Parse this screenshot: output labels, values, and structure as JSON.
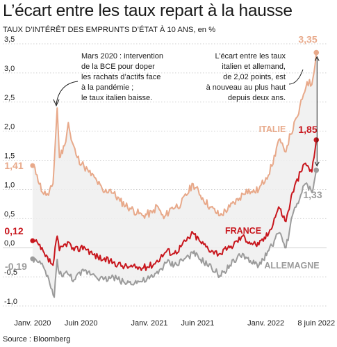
{
  "header": {
    "title": "L’écart entre les taux repart à la hausse",
    "subtitle": "TAUX D’INTÉRÊT DES EMPRUNTS D’ÉTAT À 10 ANS, en %"
  },
  "source": "Source : Bloomberg",
  "colors": {
    "italie": "#e8a98a",
    "france": "#c8161d",
    "allemagne": "#9b9b9b",
    "band": "#efefef",
    "grid": "#cfcfcf"
  },
  "chart_data": {
    "type": "line",
    "x_tick_labels": [
      "Janv. 2020",
      "Juin 2020",
      "Janv. 2021",
      "Juin 2021",
      "Janv. 2022",
      "8 juin 2022"
    ],
    "x_tick_dates": [
      "2020-01-01",
      "2020-06-01",
      "2021-01-01",
      "2021-06-01",
      "2022-01-01",
      "2022-06-08"
    ],
    "y_tick_labels": [
      "3,5",
      "3,0",
      "2,5",
      "2,0",
      "1,5",
      "1,0",
      "0,5",
      "0,0",
      "-0,5",
      "-1,0"
    ],
    "ylim": [
      -1.0,
      3.5
    ],
    "grid": true,
    "series": [
      {
        "name": "ITALIE",
        "start_label": "1,41",
        "end_label": "3,35",
        "points": [
          [
            "2020-01-01",
            1.41
          ],
          [
            "2020-01-15",
            1.25
          ],
          [
            "2020-02-01",
            0.95
          ],
          [
            "2020-02-20",
            0.9
          ],
          [
            "2020-03-05",
            1.1
          ],
          [
            "2020-03-18",
            2.4
          ],
          [
            "2020-03-25",
            1.55
          ],
          [
            "2020-04-10",
            1.75
          ],
          [
            "2020-04-22",
            2.15
          ],
          [
            "2020-05-01",
            1.85
          ],
          [
            "2020-05-20",
            1.55
          ],
          [
            "2020-06-10",
            1.4
          ],
          [
            "2020-06-25",
            1.3
          ],
          [
            "2020-07-20",
            1.15
          ],
          [
            "2020-08-10",
            0.95
          ],
          [
            "2020-09-01",
            1.0
          ],
          [
            "2020-10-01",
            0.8
          ],
          [
            "2020-11-01",
            0.68
          ],
          [
            "2020-12-10",
            0.55
          ],
          [
            "2021-01-10",
            0.6
          ],
          [
            "2021-01-25",
            0.72
          ],
          [
            "2021-02-15",
            0.5
          ],
          [
            "2021-03-10",
            0.68
          ],
          [
            "2021-04-10",
            0.75
          ],
          [
            "2021-05-18",
            1.1
          ],
          [
            "2021-06-10",
            0.9
          ],
          [
            "2021-07-10",
            0.7
          ],
          [
            "2021-08-10",
            0.55
          ],
          [
            "2021-09-10",
            0.7
          ],
          [
            "2021-10-10",
            0.85
          ],
          [
            "2021-11-01",
            1.0
          ],
          [
            "2021-11-20",
            0.95
          ],
          [
            "2021-12-10",
            1.0
          ],
          [
            "2022-01-01",
            1.2
          ],
          [
            "2022-01-20",
            1.4
          ],
          [
            "2022-02-10",
            1.85
          ],
          [
            "2022-03-01",
            1.65
          ],
          [
            "2022-03-20",
            1.95
          ],
          [
            "2022-04-10",
            2.25
          ],
          [
            "2022-04-25",
            2.55
          ],
          [
            "2022-05-10",
            2.85
          ],
          [
            "2022-05-25",
            2.8
          ],
          [
            "2022-06-08",
            3.35
          ]
        ]
      },
      {
        "name": "FRANCE",
        "start_label": "0,12",
        "end_label": "1,85",
        "points": [
          [
            "2020-01-01",
            0.12
          ],
          [
            "2020-01-20",
            0.05
          ],
          [
            "2020-02-10",
            -0.15
          ],
          [
            "2020-03-05",
            -0.3
          ],
          [
            "2020-03-18",
            0.2
          ],
          [
            "2020-03-25",
            -0.05
          ],
          [
            "2020-04-20",
            0.1
          ],
          [
            "2020-05-10",
            -0.05
          ],
          [
            "2020-06-10",
            0.02
          ],
          [
            "2020-07-10",
            -0.12
          ],
          [
            "2020-08-10",
            -0.2
          ],
          [
            "2020-09-10",
            -0.25
          ],
          [
            "2020-10-15",
            -0.32
          ],
          [
            "2020-12-10",
            -0.35
          ],
          [
            "2021-01-15",
            -0.28
          ],
          [
            "2021-02-25",
            -0.05
          ],
          [
            "2021-03-20",
            -0.1
          ],
          [
            "2021-05-18",
            0.25
          ],
          [
            "2021-06-10",
            0.1
          ],
          [
            "2021-07-15",
            -0.05
          ],
          [
            "2021-08-10",
            -0.1
          ],
          [
            "2021-09-10",
            0.0
          ],
          [
            "2021-10-20",
            0.2
          ],
          [
            "2021-11-10",
            0.1
          ],
          [
            "2021-12-10",
            0.05
          ],
          [
            "2022-01-10",
            0.25
          ],
          [
            "2022-02-10",
            0.7
          ],
          [
            "2022-03-05",
            0.45
          ],
          [
            "2022-03-25",
            0.95
          ],
          [
            "2022-04-20",
            1.3
          ],
          [
            "2022-05-05",
            1.45
          ],
          [
            "2022-05-25",
            1.3
          ],
          [
            "2022-06-08",
            1.85
          ]
        ]
      },
      {
        "name": "ALLEMAGNE",
        "start_label": "-0,19",
        "end_label": "1,33",
        "points": [
          [
            "2020-01-01",
            -0.19
          ],
          [
            "2020-01-20",
            -0.25
          ],
          [
            "2020-02-10",
            -0.4
          ],
          [
            "2020-03-09",
            -0.85
          ],
          [
            "2020-03-18",
            -0.2
          ],
          [
            "2020-03-25",
            -0.45
          ],
          [
            "2020-04-20",
            -0.45
          ],
          [
            "2020-05-10",
            -0.55
          ],
          [
            "2020-06-10",
            -0.4
          ],
          [
            "2020-07-10",
            -0.45
          ],
          [
            "2020-08-10",
            -0.55
          ],
          [
            "2020-09-10",
            -0.5
          ],
          [
            "2020-10-15",
            -0.6
          ],
          [
            "2020-12-10",
            -0.58
          ],
          [
            "2021-01-15",
            -0.5
          ],
          [
            "2021-02-25",
            -0.25
          ],
          [
            "2021-03-20",
            -0.3
          ],
          [
            "2021-05-18",
            -0.1
          ],
          [
            "2021-06-10",
            -0.2
          ],
          [
            "2021-07-15",
            -0.35
          ],
          [
            "2021-08-10",
            -0.48
          ],
          [
            "2021-09-10",
            -0.3
          ],
          [
            "2021-10-20",
            -0.1
          ],
          [
            "2021-11-10",
            -0.25
          ],
          [
            "2021-12-10",
            -0.3
          ],
          [
            "2022-01-10",
            -0.05
          ],
          [
            "2022-02-10",
            0.25
          ],
          [
            "2022-03-05",
            0.0
          ],
          [
            "2022-03-25",
            0.55
          ],
          [
            "2022-04-20",
            0.9
          ],
          [
            "2022-05-05",
            1.1
          ],
          [
            "2022-05-25",
            0.95
          ],
          [
            "2022-06-08",
            1.33
          ]
        ]
      }
    ],
    "annotations": [
      {
        "lines": [
          "Mars 2020 : intervention",
          "de la BCE pour doper",
          "les rachats d’actifs face",
          "à la pandémie ;",
          "le taux italien baisse."
        ]
      },
      {
        "lines": [
          "L’écart entre les taux",
          "italien et allemand,",
          "de 2,02 points, est",
          "à nouveau au plus haut",
          "depuis deux ans."
        ]
      }
    ]
  }
}
